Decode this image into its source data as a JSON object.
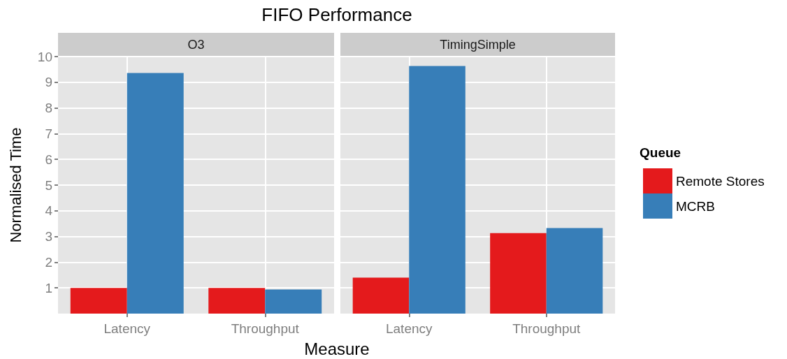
{
  "chart_data": [
    {
      "type": "bar",
      "title": "O3",
      "annotations": [
        "FIFO Performance"
      ],
      "xlabel": "Measure",
      "ylabel": "Normalised Time",
      "categories": [
        "Latency",
        "Throughput"
      ],
      "series": [
        {
          "color": "#e41a1c",
          "values": [
            1.0,
            1.0
          ]
        },
        {
          "color": "#377eb8",
          "values": [
            9.36,
            0.94
          ]
        }
      ],
      "ylim": [
        0,
        10
      ],
      "yticks": [
        1,
        2,
        3,
        4,
        5,
        6,
        7,
        8,
        9,
        10
      ],
      "grid": true
    },
    {
      "type": "bar",
      "title": "TimingSimple",
      "legend_title": "Queue",
      "categories": [
        "Latency",
        "Throughput"
      ],
      "series": [
        {
          "name": "Remote Stores",
          "color": "#e41a1c",
          "values": [
            1.4,
            3.13
          ]
        },
        {
          "name": "MCRB",
          "color": "#377eb8",
          "values": [
            9.63,
            3.33
          ]
        }
      ],
      "ylim": [
        0,
        10
      ],
      "yticks": [
        1,
        2,
        3,
        4,
        5,
        6,
        7,
        8,
        9,
        10
      ],
      "grid": true,
      "legend": "right",
      "tick_labels": "x"
    }
  ]
}
